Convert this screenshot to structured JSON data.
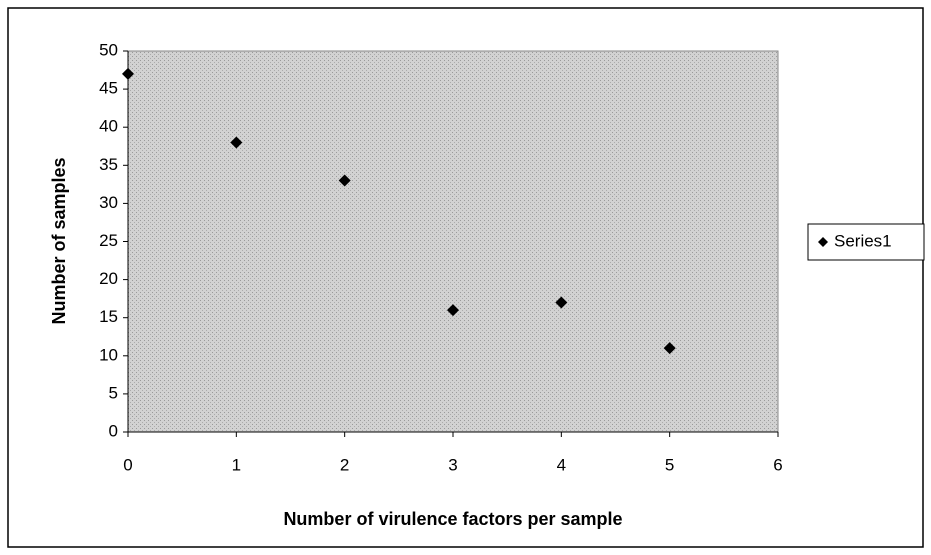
{
  "chart_data": {
    "type": "scatter",
    "x": [
      0,
      1,
      2,
      3,
      4,
      5
    ],
    "series": [
      {
        "name": "Series1",
        "color": "#000000",
        "values": [
          47,
          38,
          33,
          16,
          17,
          11
        ]
      }
    ],
    "xlim": [
      0,
      6
    ],
    "xticks": [
      0,
      1,
      2,
      3,
      4,
      5,
      6
    ],
    "ylim": [
      0,
      50
    ],
    "yticks": [
      0,
      5,
      10,
      15,
      20,
      25,
      30,
      35,
      40,
      45,
      50
    ],
    "xlabel": "Number of virulence factors per sample",
    "ylabel": "Number of samples",
    "legend": "right",
    "grid": false
  }
}
